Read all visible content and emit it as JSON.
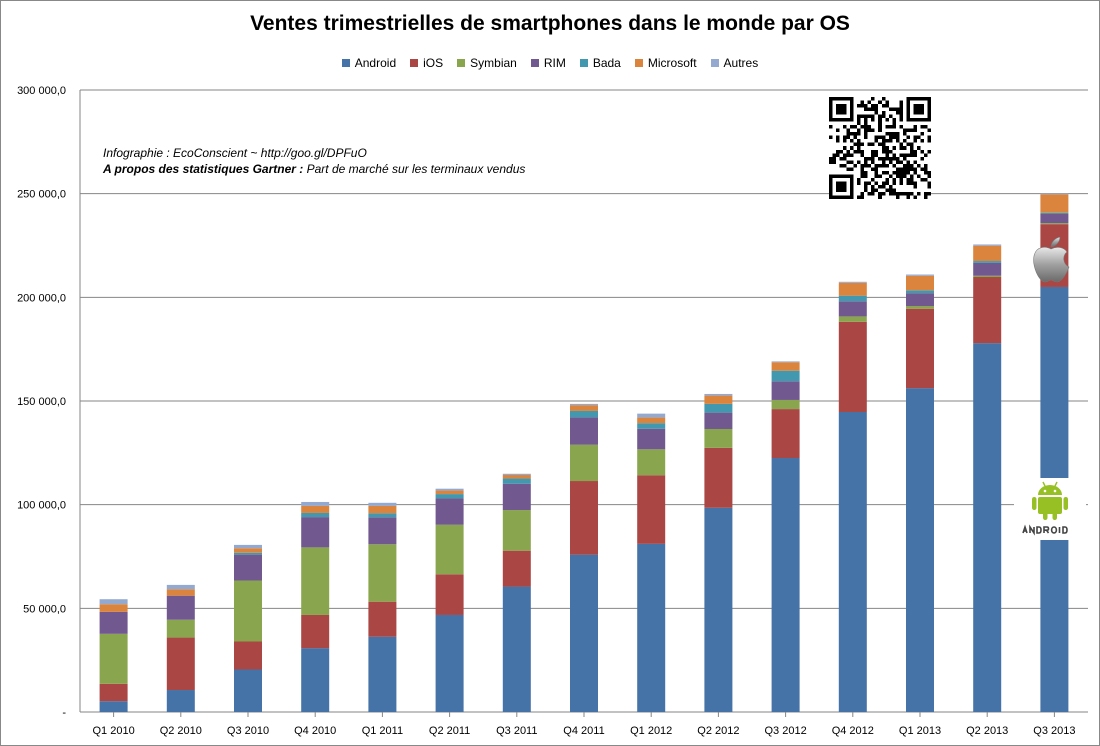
{
  "chart_data": {
    "type": "bar",
    "stacked": true,
    "title": "Ventes trimestrielles de smartphones dans le monde par OS",
    "xlabel": "",
    "ylabel": "",
    "ylim": [
      0,
      300000
    ],
    "yticks": [
      0,
      50000,
      100000,
      150000,
      200000,
      250000,
      300000
    ],
    "ytick_labels": [
      "-",
      "50 000,0",
      "100 000,0",
      "150 000,0",
      "200 000,0",
      "250 000,0",
      "300 000,0"
    ],
    "grid": true,
    "legend": "top",
    "categories": [
      "Q1 2010",
      "Q2 2010",
      "Q3 2010",
      "Q4 2010",
      "Q1 2011",
      "Q2 2011",
      "Q3 2011",
      "Q4 2011",
      "Q1 2012",
      "Q2 2012",
      "Q3 2012",
      "Q4 2012",
      "Q1 2013",
      "Q2 2013",
      "Q3 2013"
    ],
    "series": [
      {
        "name": "Android",
        "color": "#4572A7",
        "values": [
          5200,
          10600,
          20500,
          30800,
          36300,
          46800,
          60500,
          75900,
          81100,
          98500,
          122500,
          144700,
          156200,
          177900,
          205000
        ]
      },
      {
        "name": "iOS",
        "color": "#AA4643",
        "values": [
          8400,
          25300,
          13500,
          16000,
          16900,
          19600,
          17300,
          35500,
          33100,
          28900,
          23600,
          43500,
          38300,
          31900,
          30300
        ]
      },
      {
        "name": "Symbian",
        "color": "#89A54E",
        "values": [
          24100,
          8600,
          29400,
          32600,
          27700,
          23900,
          19600,
          17500,
          12500,
          9100,
          4400,
          2600,
          1300,
          600,
          500
        ]
      },
      {
        "name": "RIM",
        "color": "#71588F",
        "values": [
          10600,
          11600,
          12500,
          14600,
          13000,
          12700,
          12700,
          13200,
          9900,
          7900,
          9000,
          7300,
          6200,
          6200,
          4400
        ]
      },
      {
        "name": "Bada",
        "color": "#4198AF",
        "values": [
          0,
          0,
          900,
          2000,
          1900,
          2100,
          2500,
          3100,
          2700,
          4200,
          5100,
          2700,
          1400,
          900,
          600
        ]
      },
      {
        "name": "Microsoft",
        "color": "#DB843D",
        "values": [
          3700,
          3100,
          2200,
          3400,
          3600,
          1700,
          1700,
          2800,
          2700,
          4000,
          4100,
          6200,
          7000,
          7400,
          8900
        ]
      },
      {
        "name": "Autres",
        "color": "#93A9CF",
        "values": [
          2400,
          2100,
          1600,
          1900,
          1500,
          900,
          600,
          600,
          1900,
          800,
          400,
          500,
          600,
          600,
          300
        ]
      }
    ],
    "annotations": [
      {
        "text": "Infographie : EcoConscient ~ http://goo.gl/DPFuO"
      },
      {
        "bold": "A propos des statistiques Gartner :",
        "text": " Part de marché sur les terminaux vendus"
      }
    ]
  }
}
